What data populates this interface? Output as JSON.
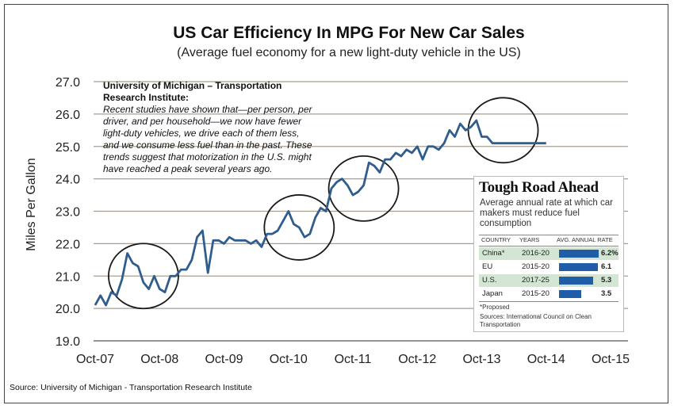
{
  "chart_data": {
    "type": "line",
    "title": "US Car Efficiency In MPG For New Car Sales",
    "subtitle": "(Average  fuel economy for a new light-duty vehicle in the US)",
    "ylabel": "Miles Per Gallon",
    "xlabel": "",
    "ylim": [
      19.0,
      27.0
    ],
    "xlim": [
      2007.75,
      2015.75
    ],
    "y_ticks": [
      "19.0",
      "20.0",
      "21.0",
      "22.0",
      "23.0",
      "24.0",
      "25.0",
      "26.0",
      "27.0"
    ],
    "x_ticks": [
      {
        "x": 2007.75,
        "label": "Oct-07"
      },
      {
        "x": 2008.75,
        "label": "Oct-08"
      },
      {
        "x": 2009.75,
        "label": "Oct-09"
      },
      {
        "x": 2010.75,
        "label": "Oct-10"
      },
      {
        "x": 2011.75,
        "label": "Oct-11"
      },
      {
        "x": 2012.75,
        "label": "Oct-12"
      },
      {
        "x": 2013.75,
        "label": "Oct-13"
      },
      {
        "x": 2014.75,
        "label": "Oct-14"
      },
      {
        "x": 2015.75,
        "label": "Oct-15"
      }
    ],
    "grid": "horizontal",
    "line_color": "#2f5d8e",
    "grid_color": "#a89e92",
    "series": [
      {
        "x": [
          2007.75,
          2007.833,
          2007.917,
          2008.0,
          2008.083,
          2008.167,
          2008.25,
          2008.333,
          2008.417,
          2008.5,
          2008.583,
          2008.667,
          2008.75,
          2008.833,
          2008.917,
          2009.0,
          2009.083,
          2009.167,
          2009.25,
          2009.333,
          2009.417,
          2009.5,
          2009.583,
          2009.667,
          2009.75,
          2009.833,
          2009.917,
          2010.0,
          2010.083,
          2010.167,
          2010.25,
          2010.333,
          2010.417,
          2010.5,
          2010.583,
          2010.667,
          2010.75,
          2010.833,
          2010.917,
          2011.0,
          2011.083,
          2011.167,
          2011.25,
          2011.333,
          2011.417,
          2011.5,
          2011.583,
          2011.667,
          2011.75,
          2011.833,
          2011.917,
          2012.0,
          2012.083,
          2012.167,
          2012.25,
          2012.333,
          2012.417,
          2012.5,
          2012.583,
          2012.667,
          2012.75,
          2012.833,
          2012.917,
          2013.0,
          2013.083,
          2013.167,
          2013.25,
          2013.333,
          2013.417,
          2013.5,
          2013.583,
          2013.667,
          2013.75,
          2013.833,
          2013.917,
          2014.0,
          2014.083,
          2014.167,
          2014.25,
          2014.333,
          2014.417,
          2014.5,
          2014.583,
          2014.667,
          2014.75
        ],
        "values": [
          20.1,
          20.4,
          20.1,
          20.5,
          20.4,
          20.9,
          21.7,
          21.4,
          21.3,
          20.8,
          20.6,
          21.0,
          20.6,
          20.5,
          21.0,
          21.0,
          21.2,
          21.2,
          21.5,
          22.2,
          22.4,
          21.1,
          22.1,
          22.1,
          22.0,
          22.2,
          22.1,
          22.1,
          22.1,
          22.0,
          22.1,
          21.9,
          22.3,
          22.3,
          22.4,
          22.7,
          23.0,
          22.6,
          22.5,
          22.2,
          22.3,
          22.8,
          23.1,
          23.0,
          23.7,
          23.9,
          24.0,
          23.8,
          23.5,
          23.6,
          23.8,
          24.5,
          24.4,
          24.2,
          24.6,
          24.6,
          24.8,
          24.7,
          24.9,
          24.8,
          25.0,
          24.6,
          25.0,
          25.0,
          24.9,
          25.1,
          25.5,
          25.3,
          25.7,
          25.5,
          25.6,
          25.8,
          25.3,
          25.3,
          25.1,
          25.1,
          25.1,
          25.1,
          25.1,
          25.1,
          25.1,
          25.1,
          25.1,
          25.1,
          25.1
        ]
      }
    ],
    "highlight_circles": [
      {
        "x": 2008.5,
        "y": 21.0
      },
      {
        "x": 2010.917,
        "y": 22.5
      },
      {
        "x": 2011.917,
        "y": 23.7
      },
      {
        "x": 2014.083,
        "y": 25.5
      }
    ]
  },
  "annotation": {
    "title": "University of Michigan – Transportation Research Institute:",
    "body": "Recent studies have shown that—per person, per driver, and per household—we now have fewer light-duty vehicles, we drive each of them less, and we consume less fuel than in the past. These trends suggest that motorization in the U.S. might have reached a peak several years ago."
  },
  "source": "Source:  University of Michigan - Transportation  Research Institute",
  "inset": {
    "title": "Tough Road Ahead",
    "subtitle": "Average annual rate at which car makers must reduce fuel consumption",
    "headers": {
      "country": "COUNTRY",
      "years": "YEARS",
      "rate": "AVG. ANNUAL RATE"
    },
    "rows": [
      {
        "country": "China*",
        "years": "2016-20",
        "rate": 6.2,
        "label": "6.2%"
      },
      {
        "country": "EU",
        "years": "2015-20",
        "rate": 6.1,
        "label": "6.1"
      },
      {
        "country": "U.S.",
        "years": "2017-25",
        "rate": 5.3,
        "label": "5.3"
      },
      {
        "country": "Japan",
        "years": "2015-20",
        "rate": 3.5,
        "label": "3.5"
      }
    ],
    "footnote": "*Proposed",
    "sources": "Sources: International Council on Clean Transportation",
    "bar_color": "#1f5da8",
    "shade_color": "#d3e6d3"
  }
}
